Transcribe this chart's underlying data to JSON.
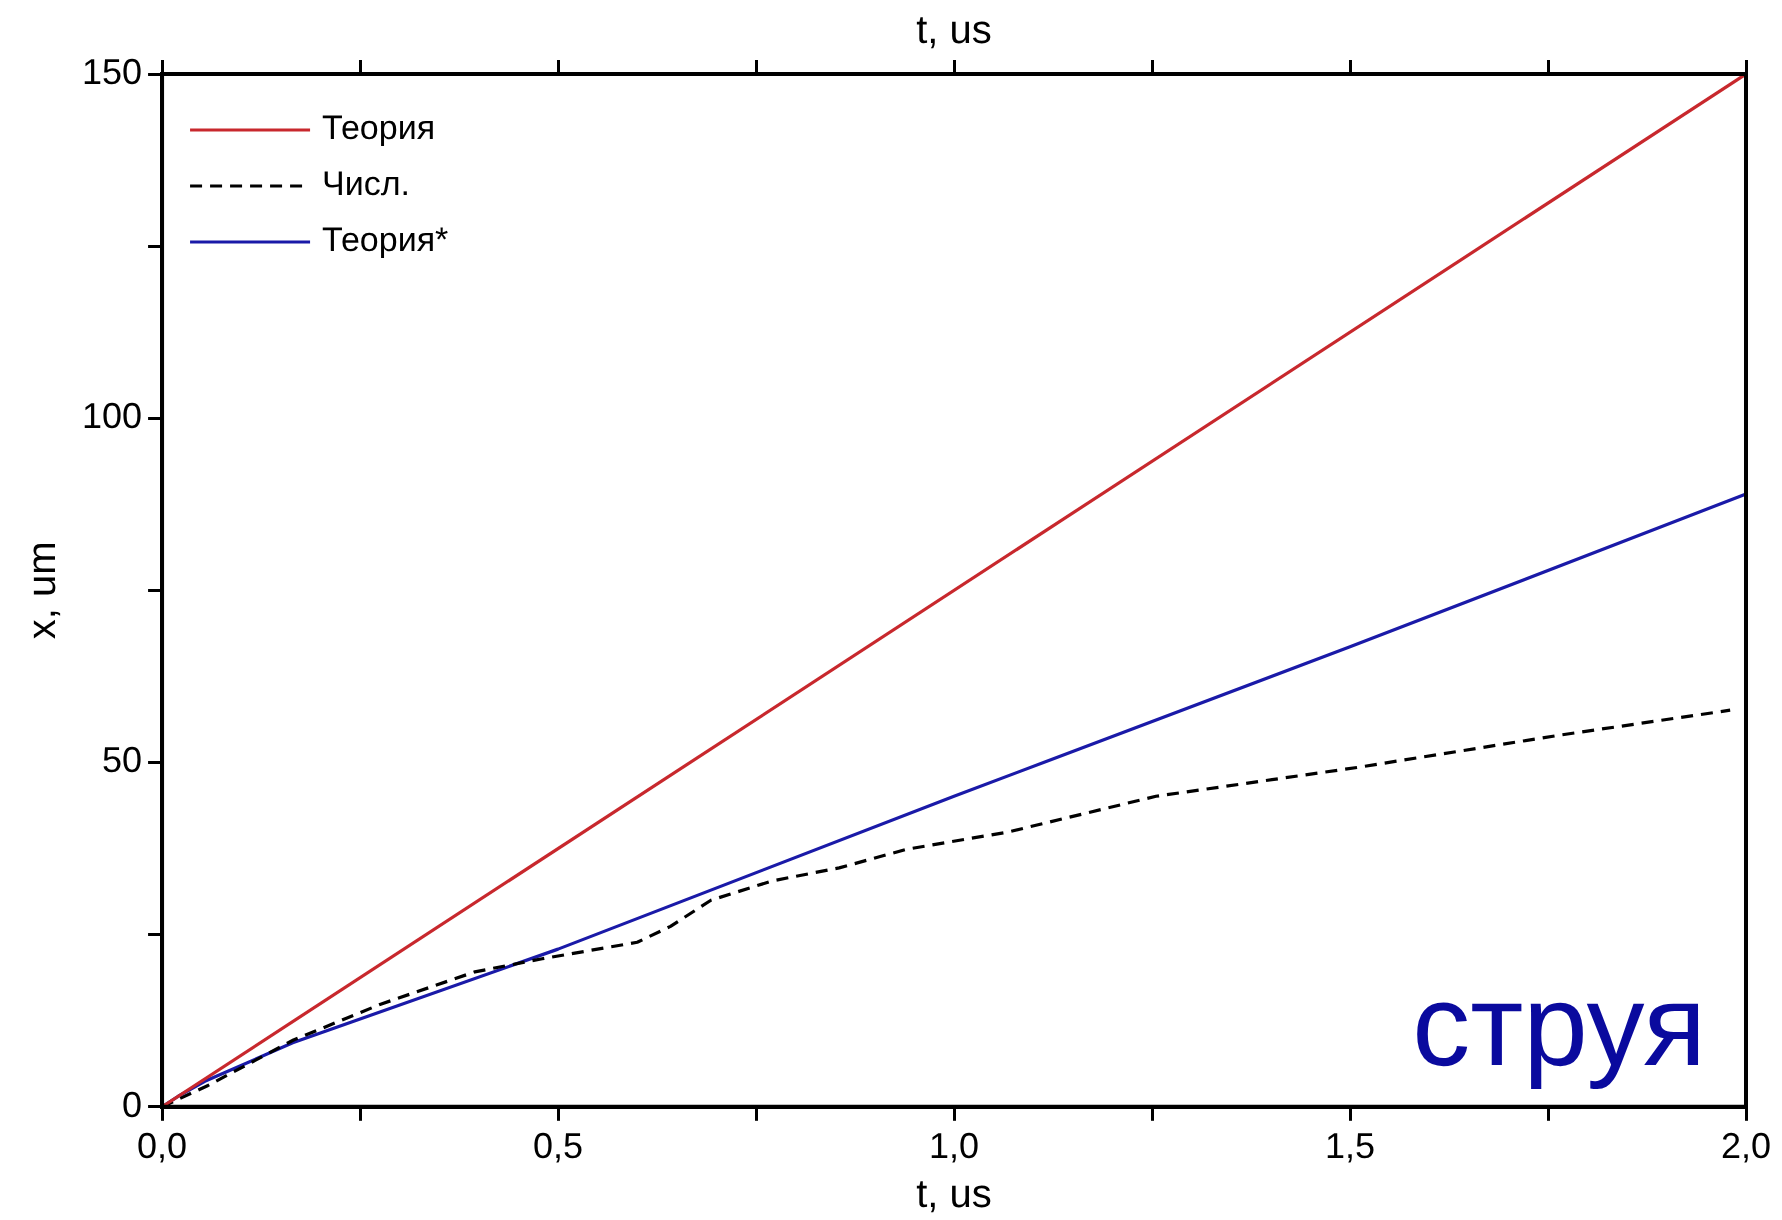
{
  "chart_data": {
    "type": "line",
    "xlabel": "t, us",
    "ylabel": "x, um",
    "x2label": "t, us",
    "xlim": [
      0,
      2
    ],
    "ylim": [
      0,
      150
    ],
    "xticks": [
      {
        "value": 0,
        "label": "0,0"
      },
      {
        "value": 0.25,
        "label": null
      },
      {
        "value": 0.5,
        "label": "0,5"
      },
      {
        "value": 0.75,
        "label": null
      },
      {
        "value": 1,
        "label": "1,0"
      },
      {
        "value": 1.25,
        "label": null
      },
      {
        "value": 1.5,
        "label": "1,5"
      },
      {
        "value": 1.75,
        "label": null
      },
      {
        "value": 2,
        "label": "2,0"
      }
    ],
    "yticks": [
      0,
      {
        "value": 25,
        "label": null
      },
      50,
      {
        "value": 75,
        "label": null
      },
      100,
      {
        "value": 125,
        "label": null
      },
      150
    ],
    "grid": false,
    "legend": "top left",
    "marker": "none",
    "tick_labels": "xy",
    "series": [
      {
        "name": "Теория",
        "color": "#c8282d",
        "line_style": "solid",
        "x": [
          0,
          2
        ],
        "values": [
          0,
          150
        ]
      },
      {
        "name": "Числ.",
        "color": "#000000",
        "line_style": "dashed",
        "x": [
          0,
          0.058,
          0.166,
          0.276,
          0.395,
          0.48,
          0.6,
          0.642,
          0.693,
          0.77,
          0.855,
          0.94,
          1.068,
          1.255,
          1.51,
          1.766,
          1.98
        ],
        "values": [
          0,
          3.1,
          9.7,
          14.9,
          19.6,
          21.5,
          23.9,
          26.2,
          30,
          32.8,
          34.7,
          37.4,
          39.9,
          45.1,
          49.3,
          54,
          57.6
        ]
      },
      {
        "name": "Теория*",
        "color": "#1a1aa8",
        "line_style": "solid",
        "x": [
          0,
          0.02,
          0.054,
          0.165,
          0.5,
          1,
          1.5,
          2
        ],
        "values": [
          0,
          1.5,
          3.7,
          9.3,
          22.9,
          45.1,
          66.8,
          89
        ]
      }
    ],
    "annotations": [
      "струя"
    ]
  }
}
